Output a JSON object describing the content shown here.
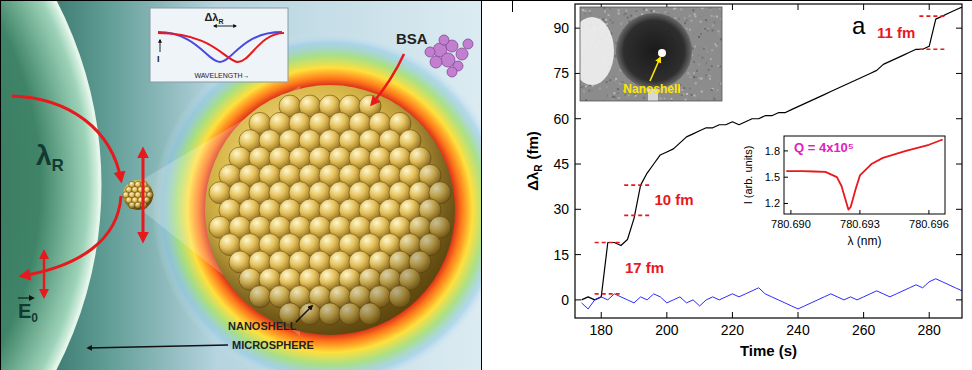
{
  "illustration": {
    "resonance_label": {
      "main": "λ",
      "sub": "R"
    },
    "field_label": {
      "main": "E",
      "sub": "0"
    },
    "spectrum_inset": {
      "shift_label": {
        "main": "Δλ",
        "sub": "R"
      },
      "x_label": "WAVELENGTH→",
      "y_label": "I"
    },
    "protein_label": "BSA",
    "part_labels": [
      "NANOSHELL",
      "MICROSPHERE"
    ]
  },
  "chart_data": [
    {
      "type": "line",
      "panel_label": "a",
      "x_label": "Time (s)",
      "y_label": {
        "main": "Δλ",
        "sub": "R",
        "unit": "(fm)"
      },
      "image_inset": {
        "label": "Nanoshell"
      },
      "x": [
        174,
        176,
        178,
        180,
        182,
        184,
        186,
        188,
        190,
        192,
        194,
        196,
        198,
        200,
        202,
        204,
        206,
        208,
        210,
        212,
        214,
        216,
        218,
        220,
        222,
        224,
        226,
        228,
        230,
        232,
        234,
        236,
        238,
        240,
        242,
        244,
        246,
        248,
        250,
        252,
        254,
        256,
        258,
        260,
        262,
        264,
        266,
        268,
        270,
        272,
        274,
        276,
        278,
        280,
        282,
        284,
        286,
        288,
        290
      ],
      "series": [
        {
          "color": "#000000",
          "values": [
            0,
            1,
            0,
            1,
            19,
            19,
            18,
            20,
            27,
            38,
            42,
            45,
            48,
            49,
            50,
            52,
            54,
            55,
            56,
            57,
            57,
            58,
            58,
            59,
            58,
            59,
            60,
            60,
            61,
            61,
            62,
            62,
            63,
            64,
            65,
            66,
            67,
            68,
            69,
            70,
            71,
            72,
            73,
            74,
            75,
            76,
            78,
            79,
            80,
            81,
            82,
            83,
            83,
            84,
            93,
            94,
            95,
            96,
            97
          ]
        },
        {
          "color": "#2b2bff",
          "values": [
            -1,
            -3,
            0,
            1,
            0,
            2,
            1,
            0,
            -1,
            1,
            0,
            2,
            1,
            -1,
            0,
            1,
            -1,
            0,
            -2,
            0,
            1,
            0,
            1,
            2,
            1,
            2,
            3,
            4,
            2,
            1,
            0,
            -1,
            -2,
            -3,
            -2,
            -1,
            0,
            1,
            2,
            1,
            0,
            1,
            0,
            1,
            2,
            3,
            2,
            1,
            2,
            3,
            4,
            5,
            4,
            6,
            7,
            6,
            5,
            4,
            3
          ]
        }
      ],
      "xlim": [
        172,
        290
      ],
      "xticks": [
        180,
        200,
        220,
        240,
        260,
        280
      ],
      "ylim": [
        -6,
        98
      ],
      "yticks": [
        0,
        15,
        30,
        45,
        60,
        75,
        90
      ],
      "annotations": [
        {
          "text": "17 fm",
          "x": 182,
          "y1": 2,
          "y2": 19,
          "color": "#e8191c"
        },
        {
          "text": "10 fm",
          "x": 191,
          "y1": 28,
          "y2": 38,
          "color": "#e8191c"
        },
        {
          "text": "11 fm",
          "x": 281,
          "y1": 83,
          "y2": 94,
          "color": "#e8191c"
        }
      ]
    },
    {
      "type": "line",
      "title": "Q = 4x10⁵",
      "title_color": "#e020c0",
      "x_label": "λ (nm)",
      "y_label": "I (arb. units)",
      "x": [
        780.6898,
        780.6905,
        780.691,
        780.6915,
        780.692,
        780.6922,
        780.6924,
        780.6925,
        780.6926,
        780.6928,
        780.693,
        780.6935,
        780.694,
        780.695,
        780.696,
        780.6966
      ],
      "series": [
        {
          "color": "#e8191c",
          "values": [
            1.57,
            1.57,
            1.565,
            1.56,
            1.5,
            1.4,
            1.22,
            1.13,
            1.16,
            1.35,
            1.52,
            1.65,
            1.72,
            1.8,
            1.87,
            1.93
          ]
        }
      ],
      "xlim": [
        780.6897,
        780.6967
      ],
      "xticks": [
        {
          "value": 780.69,
          "label": "780.690"
        },
        780.693,
        780.696
      ],
      "ylim": [
        1.08,
        1.97
      ],
      "yticks": [
        1.2,
        1.5,
        1.8
      ]
    }
  ]
}
